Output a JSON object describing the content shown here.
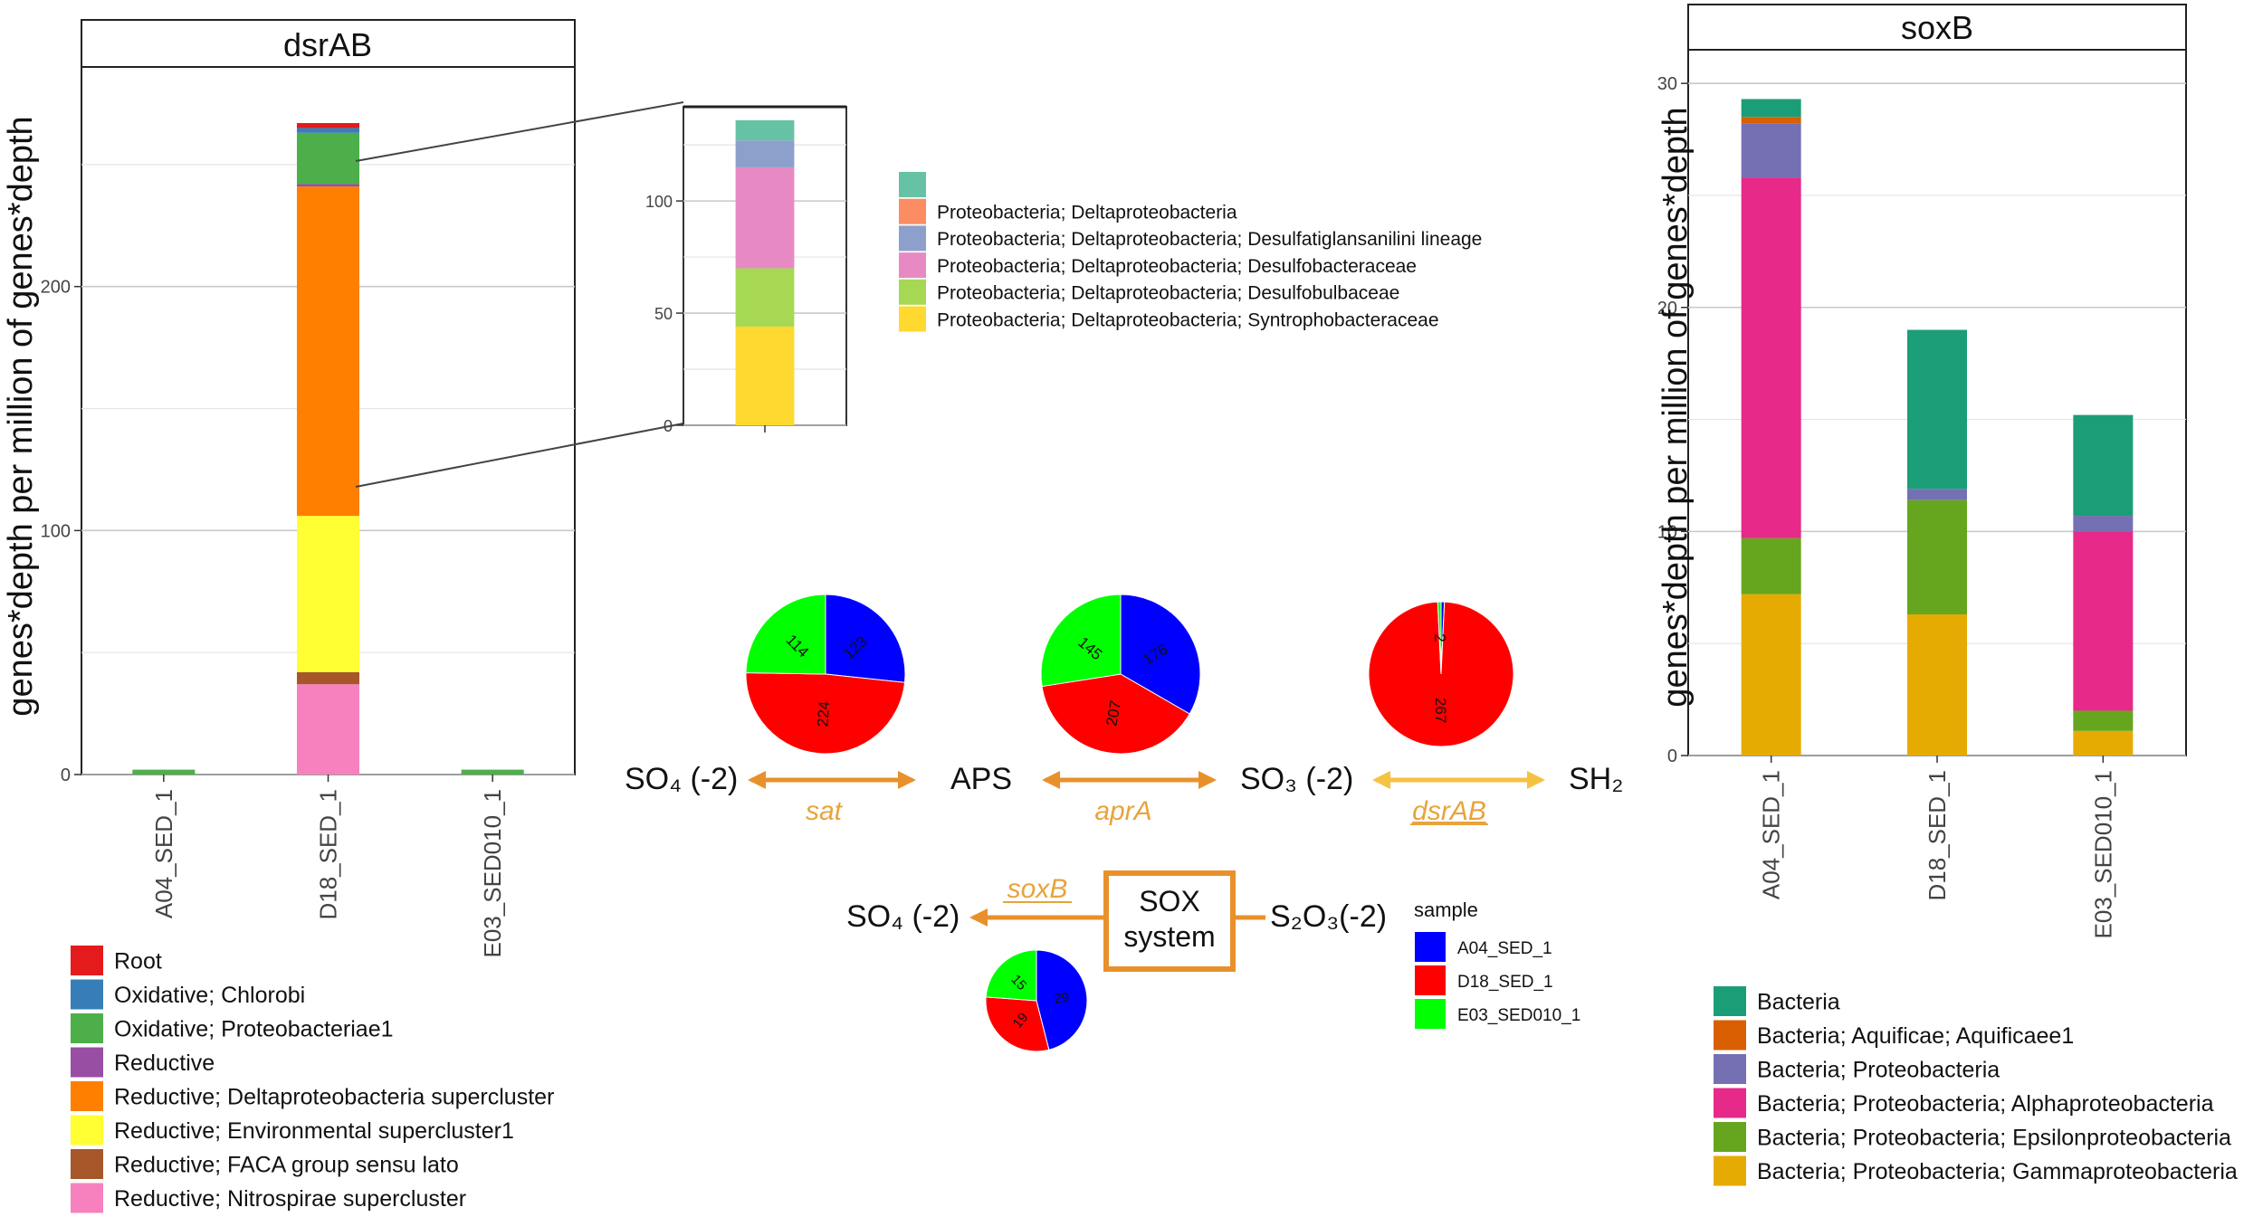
{
  "colors": {
    "root": "#E41A1C",
    "chlorobi": "#377EB8",
    "oxi_proteo": "#4DAF4A",
    "reductive": "#984EA3",
    "delta_super": "#FF7F00",
    "env_super": "#FFFF33",
    "faca": "#A65628",
    "nitrospirae": "#F781BF",
    "inset_teal": "#66C2A5",
    "inset_salmon": "#FC8D62",
    "inset_blue": "#8DA0CB",
    "inset_pink": "#E78AC3",
    "inset_lime": "#A6D854",
    "inset_yellow": "#FFD92F",
    "sox_bacteria": "#1B9E77",
    "sox_aquificae": "#D95F02",
    "sox_proteo": "#7570B3",
    "sox_alpha": "#E7298A",
    "sox_epsilon": "#66A61E",
    "sox_gamma": "#E6AB02",
    "sample_a04": "#0000FF",
    "sample_d18": "#FF0000",
    "sample_e03": "#00FF00",
    "arrow_orange": "#E8912C",
    "arrow_yellow": "#F5C242",
    "gene_label": "#E8A33C"
  },
  "chart_data": [
    {
      "id": "dsrab_bar",
      "type": "bar",
      "stacked": true,
      "title": "dsrAB",
      "ylabel": "genes*depth per million of genes*depth",
      "xlabel": "",
      "ylim": [
        0,
        290
      ],
      "yticks": [
        0,
        100,
        200
      ],
      "categories": [
        "A04_SED_1",
        "D18_SED_1",
        "E03_SED010_1"
      ],
      "series": [
        {
          "name": "Reductive; Nitrospirae supercluster",
          "color_key": "nitrospirae",
          "values": [
            0,
            37,
            0
          ]
        },
        {
          "name": "Reductive; FACA group sensu lato",
          "color_key": "faca",
          "values": [
            0,
            5,
            0
          ]
        },
        {
          "name": "Reductive; Environmental supercluster1",
          "color_key": "env_super",
          "values": [
            0,
            64,
            0
          ]
        },
        {
          "name": "Reductive; Deltaproteobacteria supercluster",
          "color_key": "delta_super",
          "values": [
            0,
            135,
            0
          ]
        },
        {
          "name": "Reductive",
          "color_key": "reductive",
          "values": [
            0,
            1,
            0
          ]
        },
        {
          "name": "Oxidative; Proteobacteriae1",
          "color_key": "oxi_proteo",
          "values": [
            2,
            21,
            2
          ]
        },
        {
          "name": "Oxidative; Chlorobi",
          "color_key": "chlorobi",
          "values": [
            0,
            2,
            0
          ]
        },
        {
          "name": "Root",
          "color_key": "root",
          "values": [
            0,
            2,
            0
          ]
        }
      ],
      "legend": [
        {
          "label": "Root",
          "color_key": "root"
        },
        {
          "label": "Oxidative; Chlorobi",
          "color_key": "chlorobi"
        },
        {
          "label": "Oxidative; Proteobacteriae1",
          "color_key": "oxi_proteo"
        },
        {
          "label": "Reductive",
          "color_key": "reductive"
        },
        {
          "label": "Reductive; Deltaproteobacteria supercluster",
          "color_key": "delta_super"
        },
        {
          "label": "Reductive; Environmental supercluster1",
          "color_key": "env_super"
        },
        {
          "label": "Reductive; FACA group sensu lato",
          "color_key": "faca"
        },
        {
          "label": "Reductive; Nitrospirae supercluster",
          "color_key": "nitrospirae"
        }
      ]
    },
    {
      "id": "dsrab_inset",
      "type": "bar",
      "stacked": true,
      "title": "",
      "ylim": [
        0,
        142
      ],
      "yticks": [
        0,
        50,
        100
      ],
      "categories": [
        ""
      ],
      "series": [
        {
          "name": "Proteobacteria; Deltaproteobacteria; Syntrophobacteraceae",
          "color_key": "inset_yellow",
          "values": [
            44
          ]
        },
        {
          "name": "Proteobacteria; Deltaproteobacteria; Desulfobulbaceae",
          "color_key": "inset_lime",
          "values": [
            26
          ]
        },
        {
          "name": "Proteobacteria; Deltaproteobacteria; Desulfobacteraceae",
          "color_key": "inset_pink",
          "values": [
            45
          ]
        },
        {
          "name": "Proteobacteria; Deltaproteobacteria; Desulfatiglansanilini lineage",
          "color_key": "inset_blue",
          "values": [
            12
          ]
        },
        {
          "name": "Proteobacteria; Deltaproteobacteria",
          "color_key": "inset_salmon",
          "values": [
            0
          ]
        },
        {
          "name": "",
          "color_key": "inset_teal",
          "values": [
            9
          ]
        }
      ],
      "legend": [
        {
          "label": "",
          "color_key": "inset_teal"
        },
        {
          "label": "Proteobacteria; Deltaproteobacteria",
          "color_key": "inset_salmon"
        },
        {
          "label": "Proteobacteria; Deltaproteobacteria; Desulfatiglansanilini lineage",
          "color_key": "inset_blue"
        },
        {
          "label": "Proteobacteria; Deltaproteobacteria; Desulfobacteraceae",
          "color_key": "inset_pink"
        },
        {
          "label": "Proteobacteria; Deltaproteobacteria; Desulfobulbaceae",
          "color_key": "inset_lime"
        },
        {
          "label": "Proteobacteria; Deltaproteobacteria; Syntrophobacteraceae",
          "color_key": "inset_yellow"
        }
      ]
    },
    {
      "id": "soxb_bar",
      "type": "bar",
      "stacked": true,
      "title": "soxB",
      "ylabel": "genes*depth per million of genes*depth",
      "xlabel": "",
      "ylim": [
        0,
        31.5
      ],
      "yticks": [
        0,
        10,
        20,
        30
      ],
      "categories": [
        "A04_SED_1",
        "D18_SED_1",
        "E03_SED010_1"
      ],
      "series": [
        {
          "name": "Bacteria; Proteobacteria; Gammaproteobacteria",
          "color_key": "sox_gamma",
          "values": [
            7.2,
            6.3,
            1.1
          ]
        },
        {
          "name": "Bacteria; Proteobacteria; Epsilonproteobacteria",
          "color_key": "sox_epsilon",
          "values": [
            2.5,
            5.1,
            0.9
          ]
        },
        {
          "name": "Bacteria; Proteobacteria; Alphaproteobacteria",
          "color_key": "sox_alpha",
          "values": [
            16.1,
            0,
            8.0
          ]
        },
        {
          "name": "Bacteria; Proteobacteria",
          "color_key": "sox_proteo",
          "values": [
            2.4,
            0.5,
            0.7
          ]
        },
        {
          "name": "Bacteria; Aquificae; Aquificaee1",
          "color_key": "sox_aquificae",
          "values": [
            0.3,
            0,
            0
          ]
        },
        {
          "name": "Bacteria",
          "color_key": "sox_bacteria",
          "values": [
            0.8,
            7.1,
            4.5
          ]
        }
      ],
      "legend": [
        {
          "label": "Bacteria",
          "color_key": "sox_bacteria"
        },
        {
          "label": "Bacteria; Aquificae; Aquificaee1",
          "color_key": "sox_aquificae"
        },
        {
          "label": "Bacteria; Proteobacteria",
          "color_key": "sox_proteo"
        },
        {
          "label": "Bacteria; Proteobacteria; Alphaproteobacteria",
          "color_key": "sox_alpha"
        },
        {
          "label": "Bacteria; Proteobacteria; Epsilonproteobacteria",
          "color_key": "sox_epsilon"
        },
        {
          "label": "Bacteria; Proteobacteria; Gammaproteobacteria",
          "color_key": "sox_gamma"
        }
      ]
    },
    {
      "id": "pie_sat",
      "type": "pie",
      "gene": "sat",
      "slices": [
        {
          "sample": "A04_SED_1",
          "value": 123,
          "label": "123",
          "color_key": "sample_a04"
        },
        {
          "sample": "D18_SED_1",
          "value": 224,
          "label": "224",
          "color_key": "sample_d18"
        },
        {
          "sample": "E03_SED010_1",
          "value": 114,
          "label": "114",
          "color_key": "sample_e03"
        }
      ]
    },
    {
      "id": "pie_apra",
      "type": "pie",
      "gene": "aprA",
      "slices": [
        {
          "sample": "A04_SED_1",
          "value": 176,
          "label": "176",
          "color_key": "sample_a04"
        },
        {
          "sample": "D18_SED_1",
          "value": 207,
          "label": "207",
          "color_key": "sample_d18"
        },
        {
          "sample": "E03_SED010_1",
          "value": 145,
          "label": "145",
          "color_key": "sample_e03"
        }
      ]
    },
    {
      "id": "pie_dsrab",
      "type": "pie",
      "gene": "dsrAB",
      "slices": [
        {
          "sample": "A04_SED_1",
          "value": 2,
          "label": "2",
          "color_key": "sample_a04"
        },
        {
          "sample": "D18_SED_1",
          "value": 267,
          "label": "267",
          "color_key": "sample_d18"
        },
        {
          "sample": "E03_SED010_1",
          "value": 2,
          "label": "2",
          "color_key": "sample_e03"
        }
      ]
    },
    {
      "id": "pie_soxb",
      "type": "pie",
      "gene": "soxB",
      "slices": [
        {
          "sample": "A04_SED_1",
          "value": 29,
          "label": "29",
          "color_key": "sample_a04"
        },
        {
          "sample": "D18_SED_1",
          "value": 19,
          "label": "19",
          "color_key": "sample_d18"
        },
        {
          "sample": "E03_SED010_1",
          "value": 15,
          "label": "15",
          "color_key": "sample_e03"
        }
      ]
    }
  ],
  "pathway": {
    "so4": "SO₄ (-2)",
    "aps": "APS",
    "so3": "SO₃ (-2)",
    "sh2": "SH₂",
    "so4_sox": "SO₄ (-2)",
    "s2o3": "S₂O₃(-2)",
    "sox_line1": "SOX",
    "sox_line2": "system",
    "gene_sat": "sat",
    "gene_apra": "aprA",
    "gene_dsrab": "dsrAB",
    "gene_soxb": "soxB"
  },
  "sample_legend": {
    "title": "sample",
    "items": [
      {
        "label": "A04_SED_1",
        "color_key": "sample_a04"
      },
      {
        "label": "D18_SED_1",
        "color_key": "sample_d18"
      },
      {
        "label": "E03_SED010_1",
        "color_key": "sample_e03"
      }
    ]
  }
}
